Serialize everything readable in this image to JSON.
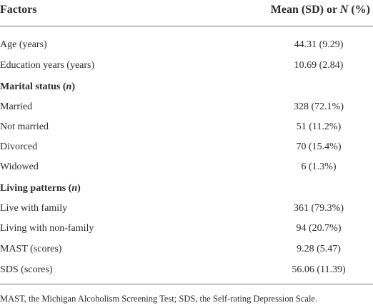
{
  "table": {
    "columns": [
      [
        "Factors"
      ],
      [
        "Mean (SD) or ",
        "N",
        " (%)"
      ]
    ],
    "rows": [
      {
        "label": [
          "Age (years)"
        ],
        "value": "44.31 (9.29)"
      },
      {
        "label": [
          "Education years (years)"
        ],
        "value": "10.69 (2.84)"
      },
      {
        "label": [
          "Marital status (",
          "n",
          ")"
        ]
      },
      {
        "label": [
          "Married"
        ],
        "value": "328 (72.1%)"
      },
      {
        "label": [
          "Not married"
        ],
        "value": "51 (11.2%)"
      },
      {
        "label": [
          "Divorced"
        ],
        "value": "70 (15.4%)"
      },
      {
        "label": [
          "Widowed"
        ],
        "value": "6 (1.3%)"
      },
      {
        "label": [
          "Living patterns (",
          "n",
          ")"
        ]
      },
      {
        "label": [
          "Live with family"
        ],
        "value": "361 (79.3%)"
      },
      {
        "label": [
          "Living with non-family"
        ],
        "value": "94 (20.7%)"
      },
      {
        "label": [
          "MAST (scores)"
        ],
        "value": "9.28 (5.47)"
      },
      {
        "label": [
          "SDS (scores)"
        ],
        "value": "56.06 (11.39)"
      }
    ],
    "footnote": "MAST, the Michigan Alcoholism Screening Test; SDS, the Self-rating Depression Scale."
  }
}
